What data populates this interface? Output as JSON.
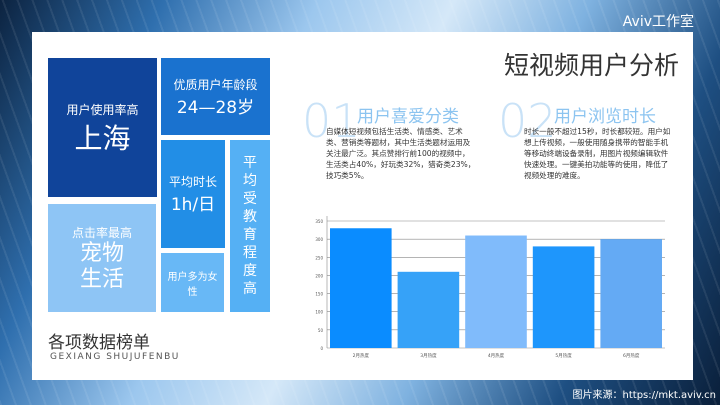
{
  "brand": "Aviv工作室",
  "source": "图片来源：https://mkt.aviv.cn",
  "title": "短视频用户分析",
  "tiles": [
    {
      "label": "用户使用率高",
      "value": "上海"
    },
    {
      "label": "优质用户年龄段",
      "value": "24—28岁"
    },
    {
      "label": "平均时长",
      "value": "1h/日"
    },
    {
      "label": "平均受教育程度高"
    },
    {
      "label": "点击率最高",
      "value": "宠物生活"
    },
    {
      "label": "用户多为女性"
    }
  ],
  "section": {
    "title": "各项数据榜单",
    "subtitle": "GEXIANG SHUJUFENBU"
  },
  "points": [
    {
      "num": "01",
      "heading": "用户喜爱分类",
      "text": "自媒体短视频包括生活类、情感类、艺术类、营销类等题材，其中生活类题材运用及关注最广泛。其点赞排行前100的视频中，生活类占40%，好玩类32%，猎奇类23%，技巧类5%。"
    },
    {
      "num": "02",
      "heading": "用户浏览时长",
      "text": "时长一般不超过15秒，时长都较短。用户如想上传视频，一般使用随身携带的智能手机等移动终端设备录制，用图片视频编辑软件快速处理。一键美拍功能等的使用，降低了视频处理的难度。"
    }
  ],
  "chart_data": {
    "type": "bar",
    "categories": [
      "2月热度",
      "3月热度",
      "4月热度",
      "5月热度",
      "6月热度"
    ],
    "values": [
      330,
      210,
      310,
      280,
      300
    ],
    "colors": [
      "#0a8cff",
      "#36a2f8",
      "#80bbfb",
      "#1e96fc",
      "#64aaf4"
    ],
    "yticks": [
      0,
      50,
      100,
      150,
      200,
      250,
      300,
      350
    ],
    "ylim": [
      0,
      350
    ],
    "grid": true
  }
}
